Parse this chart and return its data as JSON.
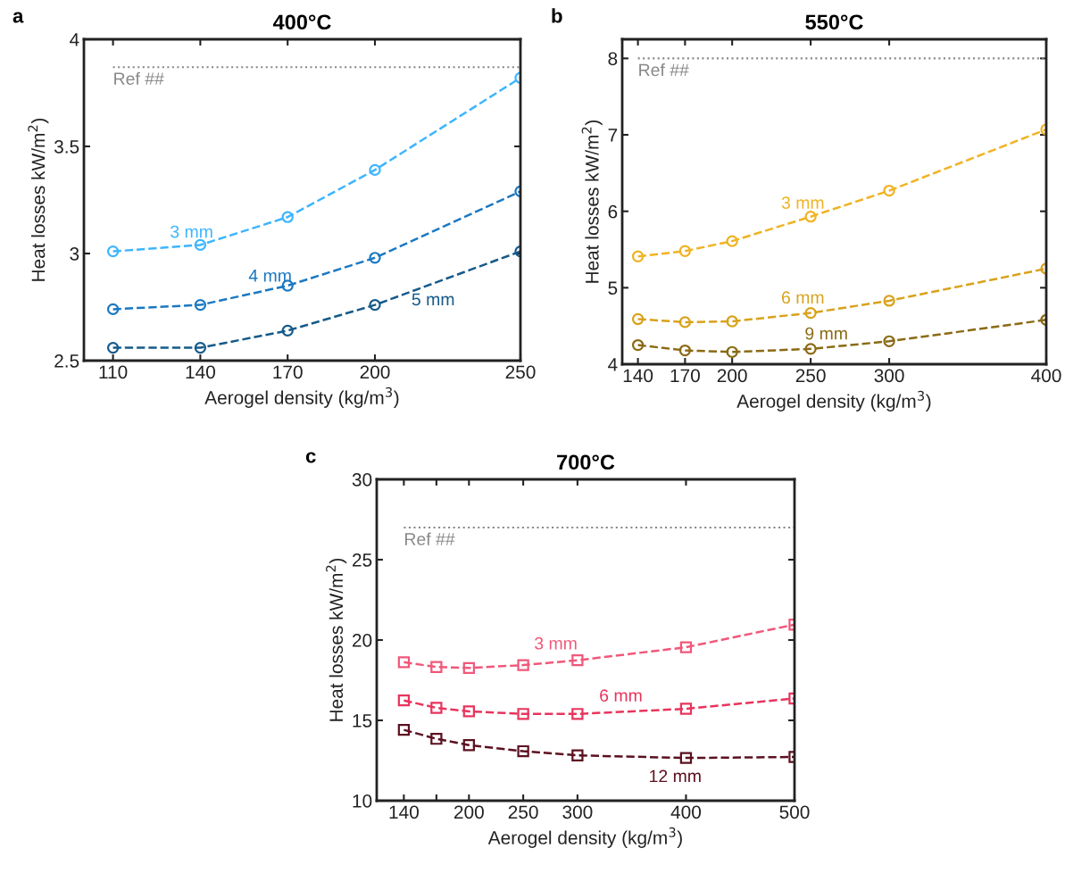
{
  "chart_data": [
    {
      "type": "line",
      "title": "400°C",
      "xlabel": "Aerogel density (kg/m$^{3}$)",
      "ylabel": "Heat losses kW/m$^{2}$)",
      "annotations": [
        "a"
      ],
      "x": [
        110,
        140,
        170,
        200,
        250
      ],
      "xlim": [
        100,
        250
      ],
      "xticks": [
        110,
        140,
        170,
        200,
        250
      ],
      "ylim": [
        2.5,
        4
      ],
      "yticks": [
        2.5,
        3,
        3.5,
        4
      ],
      "marker": "circle",
      "line_style": "dashed",
      "grid": false,
      "legend": false,
      "ref_lines": [
        {
          "axis": "y",
          "value": 3.87,
          "label": "Ref ##",
          "color": "#888888",
          "line_style": "dotted"
        }
      ],
      "series": [
        {
          "name": "3 mm",
          "color": "#3db5ff",
          "values": [
            3.01,
            3.04,
            3.17,
            3.39,
            3.82
          ]
        },
        {
          "name": "4 mm",
          "color": "#1a78c2",
          "values": [
            2.74,
            2.76,
            2.85,
            2.98,
            3.29
          ]
        },
        {
          "name": "5 mm",
          "color": "#155a8a",
          "values": [
            2.56,
            2.56,
            2.64,
            2.76,
            3.01
          ]
        }
      ]
    },
    {
      "type": "line",
      "title": "550°C",
      "xlabel": "Aerogel density (kg/m$^{3}$)",
      "ylabel": "Heat losses kW/m$^{2}$)",
      "annotations": [
        "b"
      ],
      "x": [
        140,
        170,
        200,
        250,
        300,
        400
      ],
      "xlim": [
        130,
        400
      ],
      "xticks": [
        140,
        170,
        200,
        250,
        300,
        400
      ],
      "ylim": [
        4,
        8.25
      ],
      "yticks": [
        4,
        5,
        6,
        7,
        8
      ],
      "marker": "circle",
      "line_style": "dashed",
      "grid": false,
      "legend": false,
      "ref_lines": [
        {
          "axis": "y",
          "value": 8,
          "label": "Ref ##",
          "color": "#888888",
          "line_style": "dotted"
        }
      ],
      "series": [
        {
          "name": "3 mm",
          "color": "#f0b323",
          "values": [
            5.41,
            5.48,
            5.61,
            5.93,
            6.27,
            7.07
          ]
        },
        {
          "name": "6 mm",
          "color": "#d9a21b",
          "values": [
            4.59,
            4.55,
            4.56,
            4.67,
            4.83,
            5.25
          ]
        },
        {
          "name": "9 mm",
          "color": "#8a6a14",
          "values": [
            4.25,
            4.18,
            4.16,
            4.2,
            4.3,
            4.58
          ]
        }
      ]
    },
    {
      "type": "line",
      "title": "700°C",
      "xlabel": "Aerogel density (kg/m$^{3}$)",
      "ylabel": "Heat losses kW/m$^{2}$)",
      "annotations": [
        "c"
      ],
      "x": [
        140,
        170,
        200,
        250,
        300,
        400,
        500
      ],
      "xlim": [
        115,
        500
      ],
      "xticks": [
        140,
        {
          "value": 170,
          "label": null
        },
        200,
        250,
        300,
        400,
        500
      ],
      "ylim": [
        10,
        30
      ],
      "yticks": [
        10,
        15,
        20,
        25,
        30
      ],
      "marker": "square",
      "line_style": "dashed",
      "grid": false,
      "legend": false,
      "ref_lines": [
        {
          "axis": "y",
          "value": 27,
          "label": "Ref ##",
          "color": "#888888",
          "line_style": "dotted"
        }
      ],
      "series": [
        {
          "name": "3 mm",
          "color": "#f0587a",
          "values": [
            18.62,
            18.32,
            18.26,
            18.44,
            18.74,
            19.55,
            20.96
          ]
        },
        {
          "name": "6 mm",
          "color": "#e8345c",
          "values": [
            16.24,
            15.78,
            15.56,
            15.4,
            15.4,
            15.72,
            16.36
          ]
        },
        {
          "name": "12 mm",
          "color": "#5c1020",
          "values": [
            14.41,
            13.85,
            13.46,
            13.08,
            12.82,
            12.66,
            12.72
          ]
        }
      ]
    }
  ]
}
